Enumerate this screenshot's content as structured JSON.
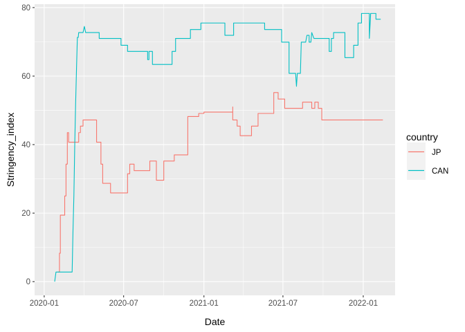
{
  "chart_data": {
    "type": "line",
    "xlabel": "Date",
    "ylabel": "Stringency_index",
    "x_ticks": [
      {
        "date": "2020-01-01",
        "label": "2020-01"
      },
      {
        "date": "2020-07-01",
        "label": "2020-07"
      },
      {
        "date": "2021-01-01",
        "label": "2021-01"
      },
      {
        "date": "2021-07-01",
        "label": "2021-07"
      },
      {
        "date": "2022-01-01",
        "label": "2022-01"
      }
    ],
    "y_ticks": [
      0,
      20,
      40,
      60,
      80
    ],
    "xlim": [
      "2019-12-10",
      "2022-03-15"
    ],
    "ylim": [
      -4,
      81
    ],
    "grid": true,
    "legend": {
      "title": "country",
      "position": "right"
    },
    "series": [
      {
        "name": "JP",
        "color": "#F8766D",
        "points": [
          [
            "2020-02-01",
            2.8
          ],
          [
            "2020-02-05",
            2.8
          ],
          [
            "2020-02-05",
            8.3
          ],
          [
            "2020-02-07",
            8.3
          ],
          [
            "2020-02-07",
            19.4
          ],
          [
            "2020-02-17",
            19.4
          ],
          [
            "2020-02-17",
            25.0
          ],
          [
            "2020-02-20",
            25.0
          ],
          [
            "2020-02-20",
            34.3
          ],
          [
            "2020-02-23",
            34.3
          ],
          [
            "2020-02-23",
            43.5
          ],
          [
            "2020-02-26",
            43.5
          ],
          [
            "2020-02-26",
            40.7
          ],
          [
            "2020-03-20",
            40.7
          ],
          [
            "2020-03-20",
            43.5
          ],
          [
            "2020-03-24",
            43.5
          ],
          [
            "2020-03-24",
            45.4
          ],
          [
            "2020-03-30",
            45.4
          ],
          [
            "2020-03-30",
            47.2
          ],
          [
            "2020-04-30",
            47.2
          ],
          [
            "2020-04-30",
            40.7
          ],
          [
            "2020-05-10",
            40.7
          ],
          [
            "2020-05-10",
            34.3
          ],
          [
            "2020-05-14",
            34.3
          ],
          [
            "2020-05-14",
            28.7
          ],
          [
            "2020-06-01",
            28.7
          ],
          [
            "2020-06-01",
            25.9
          ],
          [
            "2020-07-10",
            25.9
          ],
          [
            "2020-07-10",
            31.5
          ],
          [
            "2020-07-15",
            31.5
          ],
          [
            "2020-07-15",
            34.3
          ],
          [
            "2020-07-25",
            34.3
          ],
          [
            "2020-07-25",
            32.4
          ],
          [
            "2020-08-30",
            32.4
          ],
          [
            "2020-08-30",
            35.2
          ],
          [
            "2020-09-14",
            35.2
          ],
          [
            "2020-09-14",
            29.6
          ],
          [
            "2020-10-01",
            29.6
          ],
          [
            "2020-10-01",
            35.2
          ],
          [
            "2020-10-25",
            35.2
          ],
          [
            "2020-10-25",
            37.0
          ],
          [
            "2020-11-25",
            37.0
          ],
          [
            "2020-11-25",
            48.2
          ],
          [
            "2020-12-20",
            48.2
          ],
          [
            "2020-12-20",
            49.1
          ],
          [
            "2021-01-01",
            49.1
          ],
          [
            "2021-01-01",
            49.5
          ],
          [
            "2021-03-08",
            49.5
          ],
          [
            "2021-03-08",
            51.0
          ],
          [
            "2021-03-08",
            47.2
          ],
          [
            "2021-03-18",
            47.2
          ],
          [
            "2021-03-18",
            45.4
          ],
          [
            "2021-03-25",
            45.4
          ],
          [
            "2021-03-25",
            42.6
          ],
          [
            "2021-04-20",
            42.6
          ],
          [
            "2021-04-20",
            45.4
          ],
          [
            "2021-05-05",
            45.4
          ],
          [
            "2021-05-05",
            49.1
          ],
          [
            "2021-06-10",
            49.1
          ],
          [
            "2021-06-10",
            55.2
          ],
          [
            "2021-06-20",
            55.2
          ],
          [
            "2021-06-20",
            53.3
          ],
          [
            "2021-07-05",
            53.3
          ],
          [
            "2021-07-05",
            50.6
          ],
          [
            "2021-08-15",
            50.6
          ],
          [
            "2021-08-15",
            52.4
          ],
          [
            "2021-09-05",
            52.4
          ],
          [
            "2021-09-05",
            50.6
          ],
          [
            "2021-09-12",
            50.6
          ],
          [
            "2021-09-12",
            52.4
          ],
          [
            "2021-09-20",
            52.4
          ],
          [
            "2021-09-20",
            50.6
          ],
          [
            "2021-09-28",
            50.6
          ],
          [
            "2021-09-28",
            47.2
          ],
          [
            "2022-02-15",
            47.2
          ]
        ]
      },
      {
        "name": "CAN",
        "color": "#00BFC4",
        "points": [
          [
            "2020-01-25",
            0.0
          ],
          [
            "2020-01-28",
            2.8
          ],
          [
            "2020-03-05",
            2.8
          ],
          [
            "2020-03-07",
            15.0
          ],
          [
            "2020-03-09",
            25.0
          ],
          [
            "2020-03-11",
            40.0
          ],
          [
            "2020-03-13",
            52.0
          ],
          [
            "2020-03-15",
            62.0
          ],
          [
            "2020-03-17",
            71.3
          ],
          [
            "2020-03-19",
            71.3
          ],
          [
            "2020-03-20",
            72.7
          ],
          [
            "2020-03-30",
            72.7
          ],
          [
            "2020-04-02",
            74.5
          ],
          [
            "2020-04-05",
            72.7
          ],
          [
            "2020-05-06",
            72.7
          ],
          [
            "2020-05-06",
            71.0
          ],
          [
            "2020-06-25",
            71.0
          ],
          [
            "2020-06-25",
            69.0
          ],
          [
            "2020-07-10",
            69.0
          ],
          [
            "2020-07-10",
            67.2
          ],
          [
            "2020-08-25",
            67.2
          ],
          [
            "2020-08-25",
            64.8
          ],
          [
            "2020-08-28",
            64.8
          ],
          [
            "2020-08-28",
            67.2
          ],
          [
            "2020-09-05",
            67.2
          ],
          [
            "2020-09-05",
            63.4
          ],
          [
            "2020-10-20",
            63.4
          ],
          [
            "2020-10-20",
            67.2
          ],
          [
            "2020-10-28",
            67.2
          ],
          [
            "2020-10-28",
            71.0
          ],
          [
            "2020-12-01",
            71.0
          ],
          [
            "2020-12-01",
            73.6
          ],
          [
            "2020-12-25",
            73.6
          ],
          [
            "2020-12-25",
            75.5
          ],
          [
            "2021-02-18",
            75.5
          ],
          [
            "2021-02-18",
            71.9
          ],
          [
            "2021-03-10",
            71.9
          ],
          [
            "2021-03-10",
            75.5
          ],
          [
            "2021-05-20",
            75.5
          ],
          [
            "2021-05-20",
            73.6
          ],
          [
            "2021-06-28",
            73.6
          ],
          [
            "2021-06-28",
            69.9
          ],
          [
            "2021-07-15",
            69.9
          ],
          [
            "2021-07-15",
            60.8
          ],
          [
            "2021-07-30",
            60.8
          ],
          [
            "2021-08-01",
            57.0
          ],
          [
            "2021-08-03",
            60.8
          ],
          [
            "2021-08-10",
            60.8
          ],
          [
            "2021-08-12",
            69.9
          ],
          [
            "2021-08-22",
            69.9
          ],
          [
            "2021-08-25",
            71.9
          ],
          [
            "2021-08-30",
            71.9
          ],
          [
            "2021-08-30",
            69.9
          ],
          [
            "2021-09-03",
            69.9
          ],
          [
            "2021-09-05",
            72.7
          ],
          [
            "2021-09-10",
            71.0
          ],
          [
            "2021-10-15",
            71.0
          ],
          [
            "2021-10-15",
            67.2
          ],
          [
            "2021-10-20",
            67.2
          ],
          [
            "2021-10-20",
            71.0
          ],
          [
            "2021-10-25",
            71.0
          ],
          [
            "2021-10-25",
            72.7
          ],
          [
            "2021-11-20",
            72.7
          ],
          [
            "2021-11-20",
            65.4
          ],
          [
            "2021-12-10",
            65.4
          ],
          [
            "2021-12-10",
            69.0
          ],
          [
            "2021-12-20",
            69.0
          ],
          [
            "2021-12-20",
            75.5
          ],
          [
            "2021-12-28",
            75.5
          ],
          [
            "2021-12-28",
            78.3
          ],
          [
            "2022-01-15",
            78.3
          ],
          [
            "2022-01-15",
            71.0
          ],
          [
            "2022-01-18",
            78.3
          ],
          [
            "2022-01-30",
            78.3
          ],
          [
            "2022-01-30",
            76.6
          ],
          [
            "2022-02-10",
            76.6
          ]
        ]
      }
    ]
  }
}
